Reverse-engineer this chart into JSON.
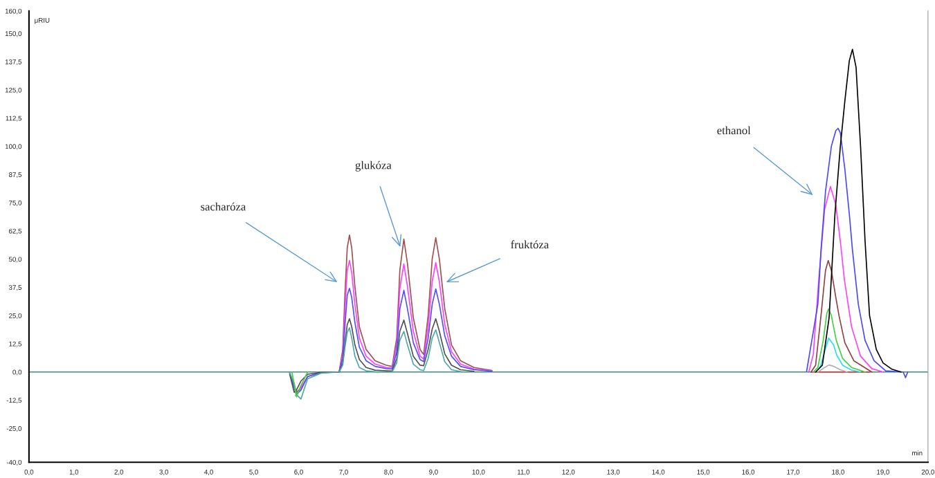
{
  "chart_data": {
    "type": "line",
    "xlabel": "min",
    "ylabel": "μRIU",
    "xlim": [
      0,
      20
    ],
    "ylim": [
      -40,
      160
    ],
    "xticks": [
      {
        "value": 0,
        "label": "0,0"
      },
      {
        "value": 1,
        "label": "1,0"
      },
      {
        "value": 2,
        "label": "2,0"
      },
      {
        "value": 3,
        "label": "3,0"
      },
      {
        "value": 4,
        "label": "4,0"
      },
      {
        "value": 5,
        "label": "5,0"
      },
      {
        "value": 6,
        "label": "6,0"
      },
      {
        "value": 7,
        "label": "7,0"
      },
      {
        "value": 8,
        "label": "8,0"
      },
      {
        "value": 9,
        "label": "9,0"
      },
      {
        "value": 10,
        "label": "10,0"
      },
      {
        "value": 11,
        "label": "11,0"
      },
      {
        "value": 12,
        "label": "12,0"
      },
      {
        "value": 13,
        "label": "13,0"
      },
      {
        "value": 14,
        "label": "14,0"
      },
      {
        "value": 15,
        "label": "15,0"
      },
      {
        "value": 16,
        "label": "16,0"
      },
      {
        "value": 17,
        "label": "17,0"
      },
      {
        "value": 18,
        "label": "18,0"
      },
      {
        "value": 19,
        "label": "19,0"
      },
      {
        "value": 20,
        "label": "20,0"
      }
    ],
    "yticks": [
      {
        "value": -40,
        "label": "-40,0"
      },
      {
        "value": -25,
        "label": "-25,0"
      },
      {
        "value": -12.5,
        "label": "-12,5"
      },
      {
        "value": 0,
        "label": "0,0"
      },
      {
        "value": 12.5,
        "label": "12,5"
      },
      {
        "value": 25,
        "label": "25,0"
      },
      {
        "value": 37.5,
        "label": "37,5"
      },
      {
        "value": 50,
        "label": "50,0"
      },
      {
        "value": 62.5,
        "label": "62,5"
      },
      {
        "value": 75,
        "label": "75,0"
      },
      {
        "value": 87.5,
        "label": "87,5"
      },
      {
        "value": 100,
        "label": "100,0"
      },
      {
        "value": 112.5,
        "label": "112,5"
      },
      {
        "value": 125,
        "label": "125,0"
      },
      {
        "value": 137.5,
        "label": "137,5"
      },
      {
        "value": 150,
        "label": "150,0"
      },
      {
        "value": 160,
        "label": "160,0"
      }
    ],
    "grid": false,
    "marker": "none",
    "line_style": "solid",
    "series": [
      {
        "color": "#3c8c80",
        "x": [
          0,
          20
        ],
        "values": [
          0,
          0
        ]
      },
      {
        "color": "#ff2020",
        "x": [
          17.4,
          18.7
        ],
        "values": [
          0,
          0
        ]
      },
      {
        "color": "#a05050",
        "x": [
          5.8,
          5.9,
          5.95,
          6.05,
          6.2,
          6.5,
          6.9,
          6.98,
          7.03,
          7.08,
          7.13,
          7.18,
          7.25,
          7.35,
          7.5,
          7.7,
          7.95,
          8.08,
          8.18,
          8.25,
          8.34,
          8.42,
          8.55,
          8.7,
          8.78,
          8.88,
          8.97,
          9.05,
          9.13,
          9.25,
          9.4,
          9.6,
          9.9,
          10.3
        ],
        "values": [
          -0.5,
          -6,
          -9,
          -7,
          -2,
          -0.3,
          0,
          10,
          35,
          55,
          60.7,
          55,
          38,
          20,
          10,
          5,
          3,
          2.5,
          15,
          45,
          58.9,
          48,
          24,
          10,
          7.7,
          25,
          50,
          59.5,
          50,
          28,
          12,
          5,
          2,
          0.7
        ]
      },
      {
        "color": "#ff40ff",
        "x": [
          5.93,
          6.05,
          6.2,
          6.5,
          6.9,
          6.98,
          7.03,
          7.08,
          7.13,
          7.18,
          7.25,
          7.35,
          7.5,
          7.7,
          7.95,
          8.08,
          8.18,
          8.25,
          8.34,
          8.42,
          8.55,
          8.7,
          8.78,
          8.88,
          8.97,
          9.05,
          9.13,
          9.25,
          9.4,
          9.6,
          9.9,
          10.3
        ],
        "values": [
          -10.5,
          -7,
          -2,
          -0.3,
          0,
          8,
          28,
          45,
          49.4,
          44,
          30,
          15,
          7,
          3.5,
          2,
          1.8,
          12,
          37,
          47.9,
          38,
          18,
          7,
          5.8,
          20,
          40,
          48.5,
          40,
          21,
          9,
          3.5,
          1.3,
          0.4
        ]
      },
      {
        "color": "#5050ff",
        "x": [
          5.8,
          5.9,
          5.95,
          6.05,
          6.2,
          6.5,
          6.9,
          6.98,
          7.03,
          7.08,
          7.13,
          7.18,
          7.25,
          7.35,
          7.5,
          7.7,
          7.95,
          8.08,
          8.18,
          8.25,
          8.34,
          8.42,
          8.55,
          8.7,
          8.78,
          8.88,
          8.97,
          9.05,
          9.13,
          9.25,
          9.4,
          9.6,
          9.9,
          10.3
        ],
        "values": [
          -0.5,
          -7,
          -10,
          -8,
          -2,
          -0.3,
          0,
          6,
          21,
          34,
          37.1,
          33,
          22,
          11,
          5,
          2.5,
          1.5,
          1.3,
          9,
          28,
          36.2,
          28,
          13,
          5.5,
          4.6,
          15,
          30,
          36.8,
          30,
          16,
          7,
          2.5,
          1,
          0.3
        ]
      },
      {
        "color": "#505050",
        "x": [
          5.8,
          5.9,
          5.95,
          6.05,
          6.2,
          6.5,
          6.9,
          6.98,
          7.03,
          7.08,
          7.13,
          7.18,
          7.25,
          7.35,
          7.5,
          7.7,
          7.95,
          8.08,
          8.18,
          8.25,
          8.34,
          8.42,
          8.55,
          8.7,
          8.78,
          8.88,
          8.97,
          9.05,
          9.13,
          9.25,
          9.4,
          9.6,
          9.9
        ],
        "values": [
          -1,
          -9,
          -8,
          -4,
          -1,
          -0.2,
          0,
          4,
          13,
          21,
          23.6,
          20,
          12,
          5.5,
          2,
          0.8,
          0.5,
          0.4,
          6,
          18,
          23,
          17,
          7,
          3,
          2.8,
          10,
          19,
          23.6,
          18,
          8,
          3,
          1,
          0.3
        ]
      },
      {
        "color": "#4fa8a8",
        "x": [
          5.8,
          5.9,
          5.95,
          6.05,
          6.2,
          6.5,
          6.9,
          6.98,
          7.03,
          7.08,
          7.13,
          7.18,
          7.25,
          7.35,
          7.5,
          7.7,
          7.95,
          8.08,
          8.18,
          8.25,
          8.34,
          8.42,
          8.55,
          8.7,
          8.78,
          8.88,
          8.97,
          9.05,
          9.13,
          9.25,
          9.4,
          9.6
        ],
        "values": [
          -0.3,
          -5,
          -10,
          -12,
          -3,
          -0.5,
          0,
          3,
          11,
          17.5,
          19.6,
          15,
          7,
          2,
          0.5,
          0.1,
          0,
          0,
          4,
          14,
          18,
          12,
          3.5,
          1,
          0.6,
          6,
          15,
          18.7,
          13,
          4.5,
          1,
          0.2
        ]
      },
      {
        "color": "#b0b0b0",
        "x": [
          17.55,
          17.7,
          17.8,
          17.9,
          18.05,
          18.2
        ],
        "values": [
          0,
          2,
          3.1,
          2.5,
          1,
          0
        ]
      },
      {
        "color": "#20e0f0",
        "x": [
          17.5,
          17.6,
          17.7,
          17.79,
          17.9,
          17.97,
          18.1,
          18.3,
          18.5
        ],
        "values": [
          0,
          2,
          9,
          15,
          12,
          7.5,
          3,
          0.8,
          0
        ]
      },
      {
        "color": "#40d040",
        "x": [
          5.85,
          5.95,
          6.05,
          6.2,
          null,
          17.45,
          17.55,
          17.67,
          17.75,
          17.79,
          17.85,
          17.96,
          18.1,
          18.3,
          18.6
        ],
        "values": [
          0,
          -11,
          -6,
          0,
          null,
          0,
          2,
          14,
          26,
          28,
          25,
          14,
          6,
          2,
          0
        ]
      },
      {
        "color": "#904040",
        "x": [
          17.4,
          17.5,
          17.62,
          17.72,
          17.78,
          17.85,
          17.95,
          18.02,
          18.15,
          18.35,
          18.75
        ],
        "values": [
          0,
          3,
          25,
          45,
          49.4,
          45,
          33,
          25,
          13,
          5,
          0
        ]
      },
      {
        "color": "#ff40ff",
        "x": [
          17.35,
          17.45,
          17.57,
          17.7,
          17.83,
          17.95,
          18.05,
          18.14,
          18.3,
          18.5,
          18.75,
          19.0
        ],
        "values": [
          0,
          8,
          41,
          72,
          82.2,
          74,
          58,
          41,
          20,
          7,
          1.5,
          0
        ]
      },
      {
        "color": "#4848ff",
        "x": [
          17.3,
          17.55,
          17.62,
          17.72,
          17.85,
          17.95,
          18.0,
          18.05,
          18.15,
          18.25,
          18.32,
          18.45,
          18.6,
          18.8,
          19.06,
          19.45,
          19.5,
          19.55
        ],
        "values": [
          0.3,
          30,
          54,
          80,
          100,
          107,
          108,
          106,
          90,
          70,
          54,
          30,
          14,
          5,
          0.5,
          0,
          -2.5,
          0
        ]
      },
      {
        "color": "#000000",
        "x": [
          17.5,
          17.65,
          17.8,
          17.93,
          18.05,
          18.15,
          18.25,
          18.32,
          18.4,
          18.5,
          18.6,
          18.7,
          18.85,
          19.0,
          19.2,
          19.4
        ],
        "values": [
          0,
          3,
          24,
          70,
          100,
          120,
          138,
          143,
          135,
          100,
          58,
          25,
          10,
          4,
          1.2,
          0
        ]
      }
    ],
    "annotations": [
      "sacharóza",
      "glukóza",
      "fruktóza",
      "ethanol"
    ]
  }
}
